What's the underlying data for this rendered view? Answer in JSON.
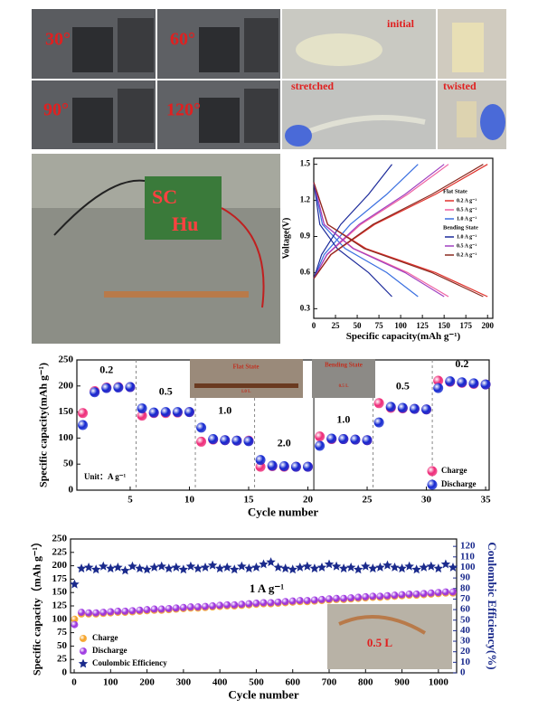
{
  "photos": {
    "bending_angles": [
      "30°",
      "60°",
      "90°",
      "120°"
    ],
    "film_states": [
      "initial",
      "stretched",
      "twisted"
    ]
  },
  "chart_data": [
    {
      "type": "line",
      "xlabel": "Specific capacity(mAh g⁻¹)",
      "ylabel": "Voltage(V)",
      "xlim": [
        0,
        206
      ],
      "ylim": [
        0.22,
        1.55
      ],
      "xticks": [
        0,
        25,
        50,
        75,
        100,
        125,
        150,
        175,
        200
      ],
      "yticks": [
        0.3,
        0.6,
        0.9,
        1.2,
        1.5
      ],
      "legend_groups": [
        "Flat State",
        "Bending State"
      ],
      "series": [
        {
          "name": "0.2 A g⁻¹",
          "color": "#e0302a",
          "group": 0,
          "charge": {
            "x": [
              0,
              20,
              70,
              140,
              200
            ],
            "values": [
              0.55,
              0.75,
              1.0,
              1.25,
              1.5
            ]
          },
          "discharge": {
            "x": [
              0,
              16,
              60,
              140,
              200
            ],
            "values": [
              1.35,
              1.0,
              0.8,
              0.6,
              0.4
            ]
          }
        },
        {
          "name": "0.5 A g⁻¹",
          "color": "#ef5fa0",
          "group": 0,
          "charge": {
            "x": [
              0,
              15.5,
              54,
              108,
              155
            ],
            "values": [
              0.55,
              0.75,
              1.0,
              1.25,
              1.5
            ]
          },
          "discharge": {
            "x": [
              0,
              12,
              46,
              108,
              155
            ],
            "values": [
              1.35,
              1.0,
              0.8,
              0.6,
              0.4
            ]
          }
        },
        {
          "name": "1.0 A g⁻¹",
          "color": "#3a6fe0",
          "group": 0,
          "charge": {
            "x": [
              0,
              12,
              42,
              84,
              120
            ],
            "values": [
              0.55,
              0.75,
              1.0,
              1.25,
              1.5
            ]
          },
          "discharge": {
            "x": [
              0,
              10,
              36,
              84,
              120
            ],
            "values": [
              1.35,
              1.0,
              0.8,
              0.6,
              0.4
            ]
          }
        },
        {
          "name": "1.0 A g⁻¹",
          "color": "#1c2a9a",
          "group": 1,
          "charge": {
            "x": [
              0,
              9,
              31,
              63,
              90
            ],
            "values": [
              0.55,
              0.75,
              1.0,
              1.25,
              1.5
            ]
          },
          "discharge": {
            "x": [
              0,
              7,
              27,
              63,
              90
            ],
            "values": [
              1.35,
              1.0,
              0.8,
              0.6,
              0.4
            ]
          }
        },
        {
          "name": "0.5 A g⁻¹",
          "color": "#a040c0",
          "group": 1,
          "charge": {
            "x": [
              0,
              15,
              52,
              105,
              150
            ],
            "values": [
              0.55,
              0.75,
              1.0,
              1.25,
              1.5
            ]
          },
          "discharge": {
            "x": [
              0,
              12,
              45,
              105,
              150
            ],
            "values": [
              1.35,
              1.0,
              0.8,
              0.6,
              0.4
            ]
          }
        },
        {
          "name": "0.2 A g⁻¹",
          "color": "#8a2a20",
          "group": 1,
          "charge": {
            "x": [
              0,
              19.5,
              68,
              136,
              195
            ],
            "values": [
              0.55,
              0.75,
              1.0,
              1.25,
              1.5
            ]
          },
          "discharge": {
            "x": [
              0,
              16,
              58,
              136,
              195
            ],
            "values": [
              1.35,
              1.0,
              0.8,
              0.6,
              0.4
            ]
          }
        }
      ]
    },
    {
      "type": "scatter",
      "xlabel": "Cycle number",
      "ylabel": "Specific capacity(mAh g⁻¹)",
      "xlim": [
        0.5,
        35.3
      ],
      "ylim": [
        0,
        250
      ],
      "xticks": [
        5,
        10,
        15,
        20,
        25,
        30,
        35
      ],
      "yticks": [
        0,
        50,
        100,
        150,
        200,
        250
      ],
      "rate_labels": [
        "0.2",
        "0.5",
        "1.0",
        "2.0",
        "1.0",
        "0.5",
        "0.2"
      ],
      "note": "Unit：A g⁻¹",
      "insets": [
        "Flat State",
        "1.0 L",
        "Bending State",
        "0.5 L"
      ],
      "x": [
        1,
        2,
        3,
        4,
        5,
        6,
        7,
        8,
        9,
        10,
        11,
        12,
        13,
        14,
        15,
        16,
        17,
        18,
        19,
        20,
        21,
        22,
        23,
        24,
        25,
        26,
        27,
        28,
        29,
        30,
        31,
        32,
        33,
        34,
        35
      ],
      "series": [
        {
          "name": "Charge",
          "color": "#ee2a78",
          "marker": "circle",
          "values": [
            148,
            190,
            197,
            198,
            198,
            143,
            148,
            148,
            149,
            150,
            93,
            97,
            96,
            95,
            95,
            45,
            46,
            45,
            45,
            45,
            103,
            98,
            98,
            97,
            96,
            167,
            158,
            157,
            156,
            155,
            210,
            208,
            206,
            204,
            203
          ]
        },
        {
          "name": "Discharge",
          "color": "#1428d0",
          "marker": "circle",
          "values": [
            125,
            188,
            196,
            197,
            198,
            157,
            149,
            150,
            150,
            150,
            120,
            98,
            96,
            95,
            94,
            58,
            47,
            46,
            45,
            45,
            85,
            99,
            98,
            97,
            96,
            130,
            160,
            158,
            156,
            155,
            196,
            209,
            207,
            205,
            203
          ]
        }
      ]
    },
    {
      "type": "scatter",
      "xlabel": "Cycle number",
      "ylabel": "Specific capacity（mAh g⁻¹）",
      "y2label": "Coulombic Efficiency(%)",
      "xlim": [
        -10,
        1050
      ],
      "ylim": [
        0,
        250
      ],
      "y2lim": [
        0,
        127
      ],
      "xticks": [
        0,
        100,
        200,
        300,
        400,
        500,
        600,
        700,
        800,
        900,
        1000
      ],
      "yticks": [
        0,
        25,
        50,
        75,
        100,
        125,
        150,
        175,
        200,
        225,
        250
      ],
      "y2ticks": [
        0,
        10,
        20,
        30,
        40,
        50,
        60,
        70,
        80,
        90,
        100,
        110,
        120
      ],
      "annotation": "1 A g⁻¹",
      "insets": [
        "0.5 L"
      ],
      "x": [
        1,
        20,
        40,
        60,
        80,
        100,
        120,
        140,
        160,
        180,
        200,
        220,
        240,
        260,
        280,
        300,
        320,
        340,
        360,
        380,
        400,
        420,
        440,
        460,
        480,
        500,
        520,
        540,
        560,
        580,
        600,
        620,
        640,
        660,
        680,
        700,
        720,
        740,
        760,
        780,
        800,
        820,
        840,
        860,
        880,
        900,
        920,
        940,
        960,
        980,
        1000,
        1020,
        1040
      ],
      "series": [
        {
          "name": "Charge",
          "color": "#f5a020",
          "marker": "circle",
          "values": [
            100,
            110,
            110,
            110,
            111,
            112,
            113,
            113,
            114,
            115,
            116,
            117,
            117,
            118,
            119,
            120,
            121,
            121,
            122,
            123,
            124,
            125,
            125,
            126,
            127,
            128,
            129,
            129,
            130,
            131,
            132,
            133,
            133,
            134,
            135,
            136,
            137,
            137,
            138,
            139,
            140,
            141,
            141,
            142,
            143,
            144,
            145,
            145,
            146,
            147,
            148,
            149,
            149
          ]
        },
        {
          "name": "Discharge",
          "color": "#9a30e0",
          "marker": "circle",
          "values": [
            90,
            113,
            112,
            112,
            113,
            114,
            115,
            115,
            116,
            117,
            118,
            119,
            119,
            120,
            121,
            122,
            123,
            123,
            124,
            125,
            126,
            127,
            127,
            128,
            129,
            130,
            131,
            131,
            132,
            133,
            134,
            135,
            135,
            136,
            137,
            138,
            139,
            139,
            140,
            141,
            142,
            143,
            143,
            144,
            145,
            146,
            147,
            147,
            148,
            149,
            150,
            151,
            151
          ]
        },
        {
          "name": "Coulombic Efficiency",
          "color": "#1a2a8c",
          "marker": "star",
          "axis": "y2",
          "values": [
            84,
            99,
            100,
            98,
            101,
            99,
            100,
            97,
            101,
            99,
            98,
            100,
            101,
            99,
            100,
            98,
            101,
            99,
            100,
            102,
            99,
            100,
            98,
            101,
            99,
            100,
            103,
            105,
            100,
            99,
            98,
            100,
            101,
            99,
            100,
            103,
            101,
            99,
            100,
            98,
            101,
            99,
            100,
            102,
            100,
            99,
            101,
            98,
            100,
            101,
            99,
            103,
            100
          ]
        }
      ]
    }
  ]
}
